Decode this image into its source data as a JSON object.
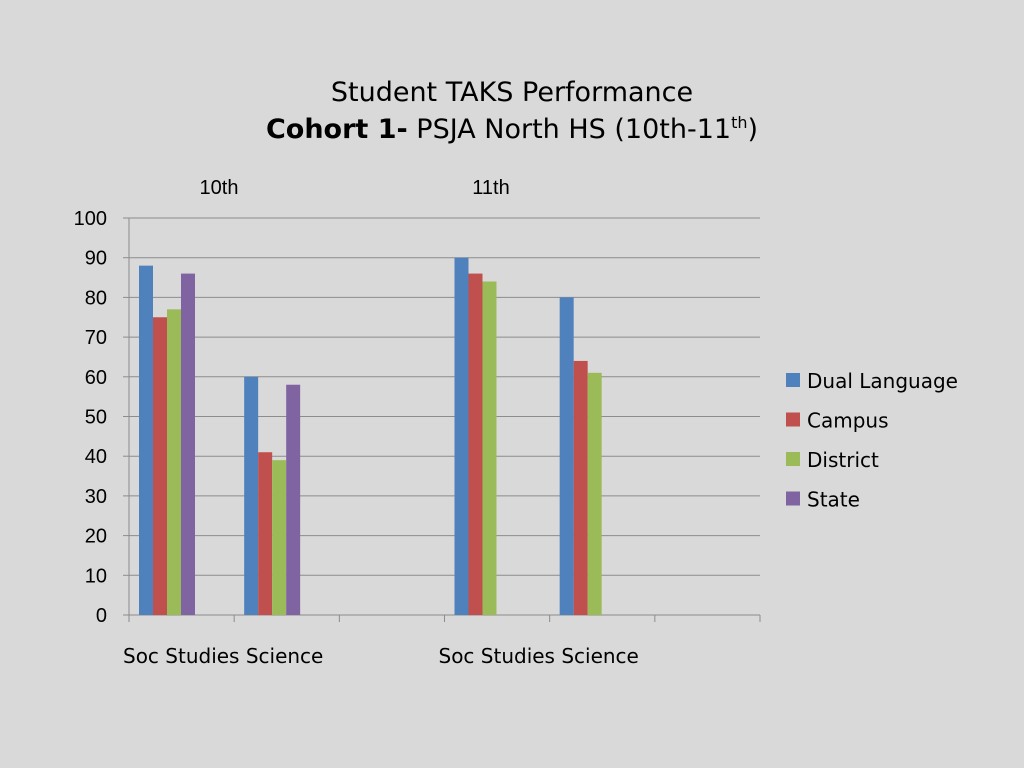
{
  "chart_data": {
    "type": "bar",
    "title": "Student TAKS Performance",
    "subtitle_bold": "Cohort 1-",
    "subtitle_main": " PSJA North HS (10th-11",
    "subtitle_sup": "th",
    "subtitle_end": ")",
    "group_labels": [
      "10th",
      "11th"
    ],
    "categories": [
      "Soc Studies",
      "Science",
      "",
      "Soc Studies",
      "Science",
      ""
    ],
    "category_label_rows": [
      "Soc Studies Science",
      "Soc Studies Science"
    ],
    "ylim": [
      0,
      100
    ],
    "yticks": [
      0,
      10,
      20,
      30,
      40,
      50,
      60,
      70,
      80,
      90,
      100
    ],
    "grid": true,
    "legend_position": "right",
    "series": [
      {
        "name": "Dual Language",
        "color": "#4f81bd",
        "values": [
          88,
          60,
          null,
          90,
          80,
          null
        ]
      },
      {
        "name": "Campus",
        "color": "#c0504d",
        "values": [
          75,
          41,
          null,
          86,
          64,
          null
        ]
      },
      {
        "name": "District",
        "color": "#9bbb59",
        "values": [
          77,
          39,
          null,
          84,
          61,
          null
        ]
      },
      {
        "name": "State",
        "color": "#8064a2",
        "values": [
          86,
          58,
          null,
          null,
          null,
          null
        ]
      }
    ]
  }
}
